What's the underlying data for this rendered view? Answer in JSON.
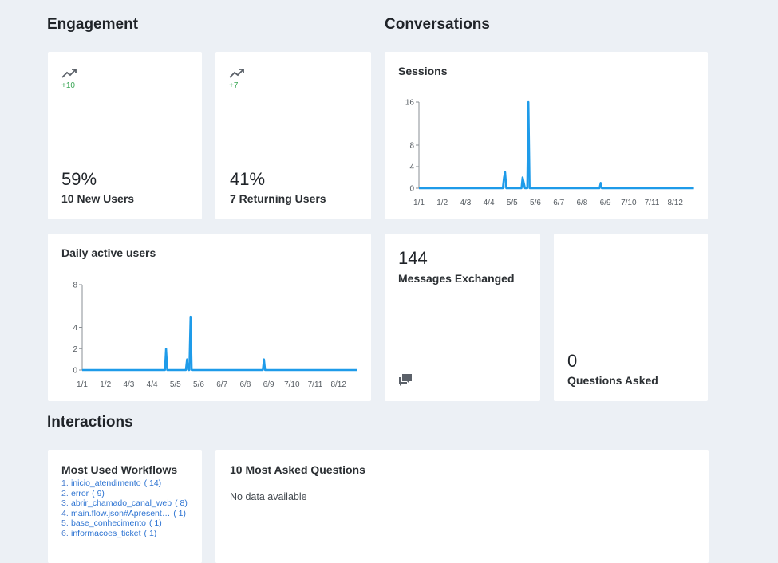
{
  "sections": {
    "engagement": "Engagement",
    "conversations": "Conversations",
    "interactions": "Interactions"
  },
  "engagement": {
    "new_users": {
      "delta": "+10",
      "percent": "59%",
      "label": "10 New Users",
      "icon": "trending-up-icon"
    },
    "returning_users": {
      "delta": "+7",
      "percent": "41%",
      "label": "7 Returning Users",
      "icon": "trending-up-icon"
    }
  },
  "sessions_chart": {
    "title": "Sessions",
    "chart_data": {
      "type": "area",
      "title": "Sessions",
      "x_ticks": [
        "1/1",
        "1/2",
        "4/3",
        "4/4",
        "5/5",
        "5/6",
        "6/7",
        "6/8",
        "6/9",
        "7/10",
        "7/11",
        "8/12"
      ],
      "y_ticks": [
        0,
        4,
        8,
        16
      ],
      "ylim": [
        0,
        16
      ],
      "series": [
        {
          "values": [
            [
              0,
              0
            ],
            [
              3.6,
              0
            ],
            [
              3.65,
              2
            ],
            [
              3.7,
              3
            ],
            [
              3.75,
              0
            ],
            [
              4.4,
              0
            ],
            [
              4.45,
              2
            ],
            [
              4.5,
              1
            ],
            [
              4.55,
              0
            ],
            [
              4.65,
              0
            ],
            [
              4.7,
              16
            ],
            [
              4.75,
              0
            ],
            [
              7.75,
              0
            ],
            [
              7.8,
              1
            ],
            [
              7.85,
              0
            ],
            [
              11.8,
              0
            ]
          ]
        }
      ],
      "color": "#1e9be9"
    }
  },
  "dau_chart": {
    "title": "Daily active users",
    "chart_data": {
      "type": "area",
      "title": "Daily active users",
      "x_ticks": [
        "1/1",
        "1/2",
        "4/3",
        "4/4",
        "5/5",
        "5/6",
        "6/7",
        "6/8",
        "6/9",
        "7/10",
        "7/11",
        "8/12"
      ],
      "y_ticks": [
        0,
        2,
        4,
        8
      ],
      "ylim": [
        0,
        8
      ],
      "series": [
        {
          "values": [
            [
              0,
              0
            ],
            [
              3.55,
              0
            ],
            [
              3.6,
              2
            ],
            [
              3.65,
              0
            ],
            [
              4.45,
              0
            ],
            [
              4.5,
              1
            ],
            [
              4.55,
              0
            ],
            [
              4.6,
              0
            ],
            [
              4.65,
              5
            ],
            [
              4.7,
              0
            ],
            [
              7.75,
              0
            ],
            [
              7.8,
              1
            ],
            [
              7.85,
              0
            ],
            [
              11.8,
              0
            ]
          ]
        }
      ],
      "color": "#1e9be9"
    }
  },
  "messages": {
    "value": "144",
    "label": "Messages Exchanged",
    "icon": "chat-bubbles-icon"
  },
  "questions": {
    "value": "0",
    "label": "Questions Asked"
  },
  "workflows": {
    "title": "Most Used Workflows",
    "items": [
      {
        "num": "1.",
        "name": "inicio_atendimento",
        "count": "( 14)"
      },
      {
        "num": "2.",
        "name": "error",
        "count": "( 9)"
      },
      {
        "num": "3.",
        "name": "abrir_chamado_canal_web",
        "count": "( 8)"
      },
      {
        "num": "4.",
        "name": "main.flow.json#Apresent…",
        "count": "( 1)"
      },
      {
        "num": "5.",
        "name": "base_conhecimento",
        "count": "( 1)"
      },
      {
        "num": "6.",
        "name": "informacoes_ticket",
        "count": "( 1)"
      }
    ]
  },
  "asked_questions": {
    "title": "10 Most Asked Questions",
    "empty_text": "No data available"
  }
}
